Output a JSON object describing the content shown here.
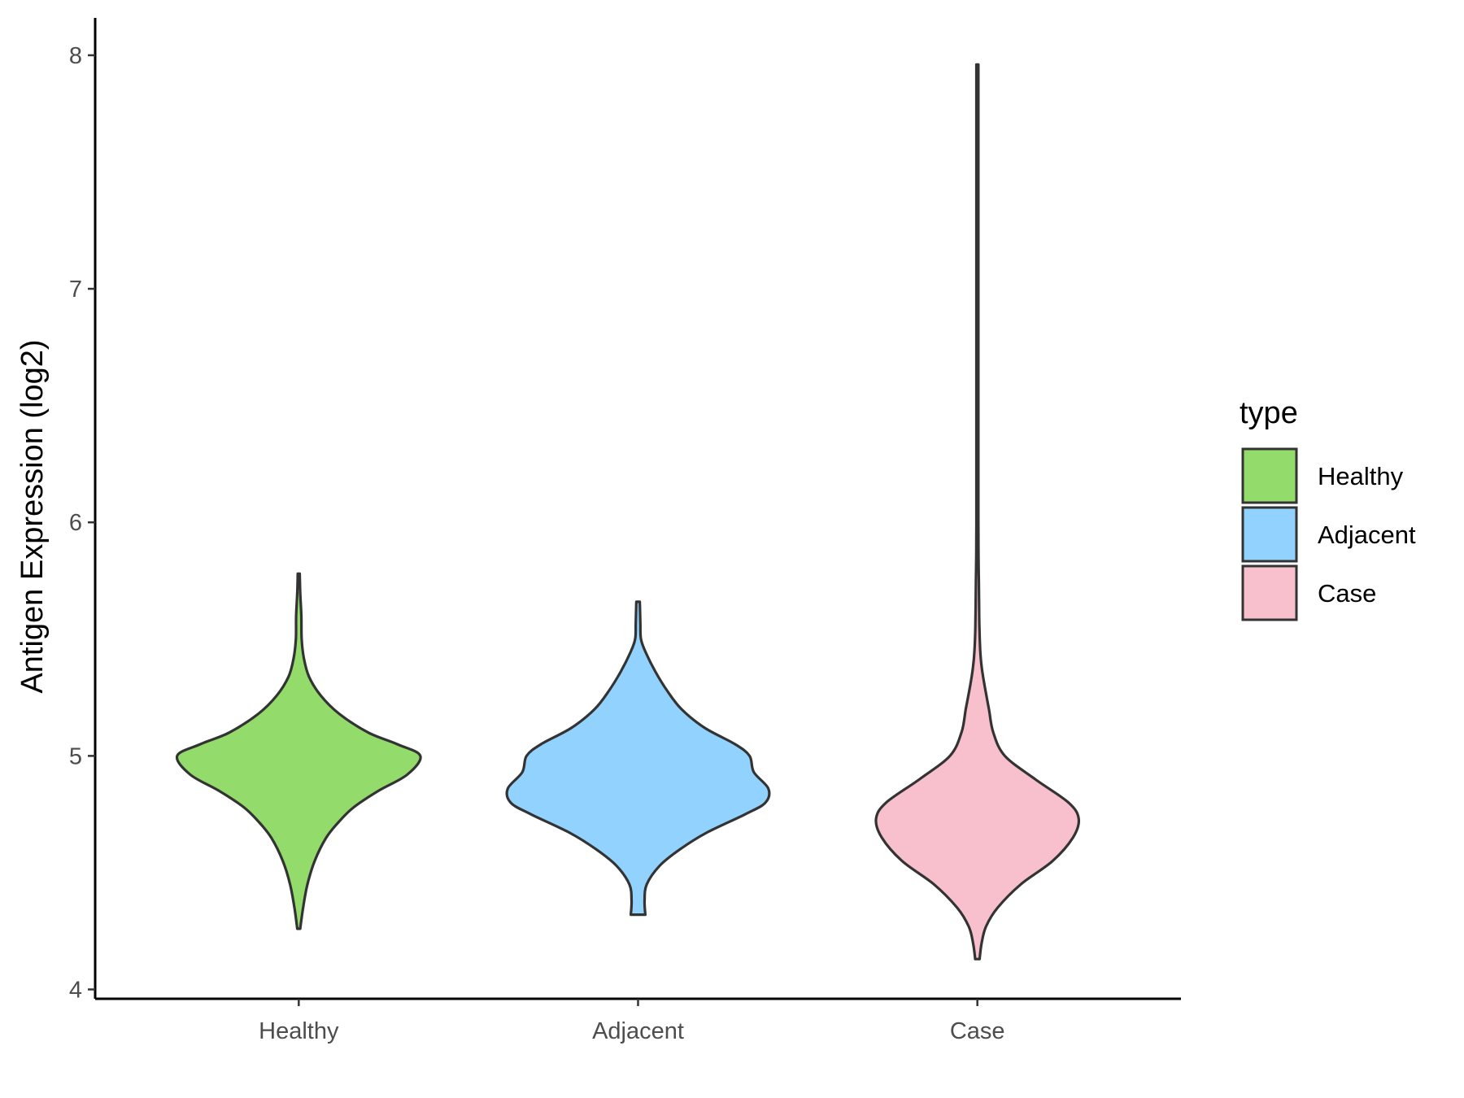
{
  "chart_data": {
    "type": "violin",
    "ylabel": "Antigen Expression (log2)",
    "xlabel": "",
    "categories": [
      "Healthy",
      "Adjacent",
      "Case"
    ],
    "ylim": [
      3.96,
      8.16
    ],
    "yticks": [
      4,
      5,
      6,
      7,
      8
    ],
    "grid": false,
    "legend": {
      "title": "type",
      "position": "right",
      "entries": [
        {
          "label": "Healthy",
          "color": "#93DB6A"
        },
        {
          "label": "Adjacent",
          "color": "#92D2FE"
        },
        {
          "label": "Case",
          "color": "#F7C0CC"
        }
      ]
    },
    "outline_color": "#333333",
    "series": [
      {
        "name": "Healthy",
        "color": "#93DB6A",
        "min": 4.26,
        "max": 5.78,
        "profile": [
          [
            4.26,
            0.01
          ],
          [
            4.35,
            0.03
          ],
          [
            4.45,
            0.06
          ],
          [
            4.55,
            0.11
          ],
          [
            4.65,
            0.19
          ],
          [
            4.72,
            0.28
          ],
          [
            4.78,
            0.38
          ],
          [
            4.85,
            0.55
          ],
          [
            4.92,
            0.75
          ],
          [
            5.0,
            0.84
          ],
          [
            5.05,
            0.68
          ],
          [
            5.1,
            0.48
          ],
          [
            5.18,
            0.28
          ],
          [
            5.26,
            0.15
          ],
          [
            5.34,
            0.07
          ],
          [
            5.42,
            0.035
          ],
          [
            5.5,
            0.02
          ],
          [
            5.6,
            0.018
          ],
          [
            5.7,
            0.01
          ],
          [
            5.78,
            0.006
          ]
        ]
      },
      {
        "name": "Adjacent",
        "color": "#92D2FE",
        "min": 4.32,
        "max": 5.66,
        "profile": [
          [
            4.32,
            0.05
          ],
          [
            4.38,
            0.045
          ],
          [
            4.45,
            0.06
          ],
          [
            4.53,
            0.15
          ],
          [
            4.6,
            0.29
          ],
          [
            4.67,
            0.47
          ],
          [
            4.75,
            0.74
          ],
          [
            4.8,
            0.88
          ],
          [
            4.86,
            0.9
          ],
          [
            4.93,
            0.8
          ],
          [
            5.0,
            0.77
          ],
          [
            5.05,
            0.67
          ],
          [
            5.12,
            0.46
          ],
          [
            5.2,
            0.3
          ],
          [
            5.28,
            0.2
          ],
          [
            5.36,
            0.12
          ],
          [
            5.44,
            0.055
          ],
          [
            5.5,
            0.02
          ],
          [
            5.57,
            0.016
          ],
          [
            5.66,
            0.012
          ]
        ]
      },
      {
        "name": "Case",
        "color": "#F7C0CC",
        "min": 4.13,
        "max": 7.96,
        "profile": [
          [
            4.13,
            0.015
          ],
          [
            4.2,
            0.03
          ],
          [
            4.27,
            0.06
          ],
          [
            4.35,
            0.14
          ],
          [
            4.45,
            0.3
          ],
          [
            4.55,
            0.52
          ],
          [
            4.65,
            0.66
          ],
          [
            4.73,
            0.7
          ],
          [
            4.8,
            0.63
          ],
          [
            4.9,
            0.4
          ],
          [
            5.0,
            0.19
          ],
          [
            5.1,
            0.11
          ],
          [
            5.2,
            0.08
          ],
          [
            5.3,
            0.05
          ],
          [
            5.38,
            0.03
          ],
          [
            5.45,
            0.02
          ],
          [
            5.55,
            0.014
          ],
          [
            5.65,
            0.012
          ],
          [
            5.75,
            0.01
          ],
          [
            5.85,
            0.008
          ],
          [
            6.0,
            0.004
          ],
          [
            6.3,
            0.002
          ],
          [
            7.0,
            0.0015
          ],
          [
            7.96,
            0.0015
          ]
        ]
      }
    ]
  }
}
